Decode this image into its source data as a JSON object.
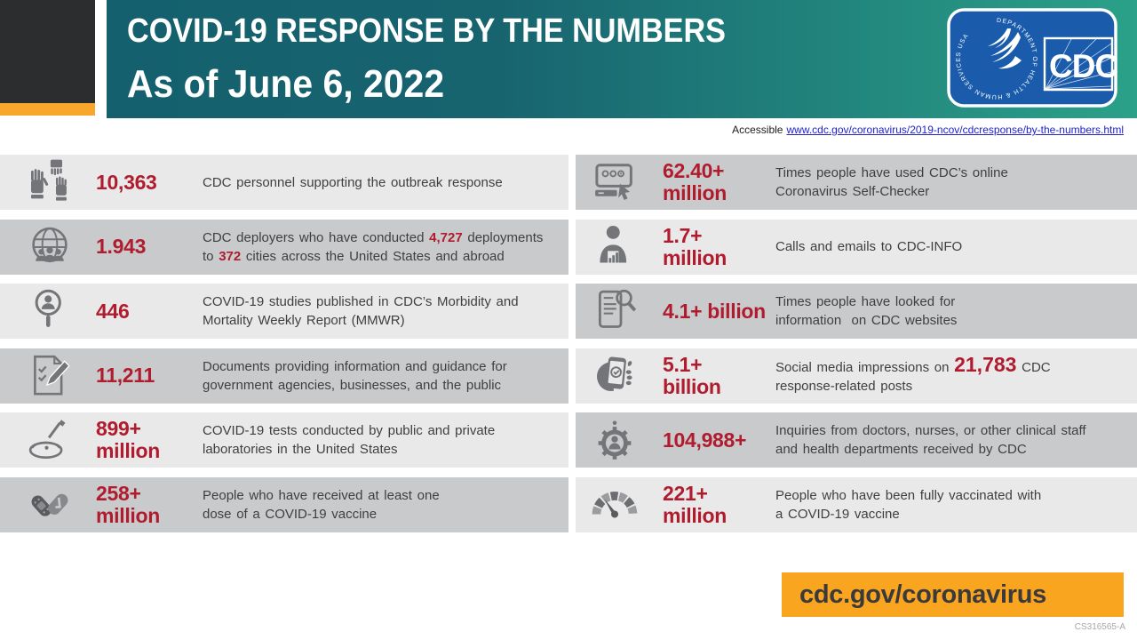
{
  "header": {
    "title": "COVID-19 RESPONSE BY THE NUMBERS",
    "subtitle": "As of June 6, 2022",
    "logo": {
      "ring_text": "DEPARTMENT OF HEALTH & HUMAN SERVICES USA",
      "cdc_text": "CDC"
    }
  },
  "accessible": {
    "label": "Accessible",
    "url_text": "www.cdc.gov/coronavirus/2019-ncov/cdcresponse/by-the-numbers.html"
  },
  "stats": {
    "left": [
      {
        "icon": "raised-hands-icon",
        "value_lines": [
          "10,363"
        ],
        "desc": [
          {
            "text": "CDC personnel supporting the outbreak response"
          }
        ]
      },
      {
        "icon": "globe-people-icon",
        "value_lines": [
          "1.943"
        ],
        "desc": [
          {
            "text": "CDC deployers who have conducted "
          },
          {
            "text": "4,727",
            "red": true
          },
          {
            "text": " deployments\nto "
          },
          {
            "text": "372",
            "red": true
          },
          {
            "text": " cities across the United States and abroad"
          }
        ]
      },
      {
        "icon": "magnifier-person-icon",
        "value_lines": [
          "446"
        ],
        "desc": [
          {
            "text": "COVID-19 studies published in CDC’s Morbidity and\nMortality Weekly Report (MMWR)"
          }
        ]
      },
      {
        "icon": "document-pen-icon",
        "value_lines": [
          "11,211"
        ],
        "desc": [
          {
            "text": "Documents providing information and guidance for\ngovernment agencies, businesses, and the public"
          }
        ]
      },
      {
        "icon": "petri-dish-icon",
        "value_lines": [
          "899+",
          "million"
        ],
        "desc": [
          {
            "text": "COVID-19 tests conducted by public and private\nlaboratories in the United States"
          }
        ]
      },
      {
        "icon": "vaccine-bandage-icon",
        "value_lines": [
          "258+",
          "million"
        ],
        "desc": [
          {
            "text": "People who have received at least one\ndose of a COVID-19 vaccine"
          }
        ]
      }
    ],
    "right": [
      {
        "icon": "self-checker-icon",
        "value_lines": [
          "62.40+",
          "million"
        ],
        "desc": [
          {
            "text": "Times people have used CDC’s online\nCoronavirus Self-Checker"
          }
        ]
      },
      {
        "icon": "person-chart-icon",
        "value_lines": [
          "1.7+",
          "million"
        ],
        "desc": [
          {
            "text": "Calls and emails to CDC-INFO"
          }
        ]
      },
      {
        "icon": "webpage-search-icon",
        "value_lines": [
          "4.1+ billion"
        ],
        "desc": [
          {
            "text": "Times people have looked for\ninformation  on CDC websites"
          }
        ]
      },
      {
        "icon": "phone-check-icon",
        "value_lines": [
          "5.1+",
          "billion"
        ],
        "desc": [
          {
            "text": "Social media impressions on "
          },
          {
            "text": "21,783",
            "red": true,
            "big": true
          },
          {
            "text": " CDC\nresponse-related posts"
          }
        ]
      },
      {
        "icon": "person-gear-icon",
        "value_lines": [
          "104,988+"
        ],
        "desc": [
          {
            "text": "Inquiries from doctors, nurses, or other clinical staff\nand health departments received by CDC"
          }
        ]
      },
      {
        "icon": "gauge-icon",
        "value_lines": [
          "221+",
          "million"
        ],
        "desc": [
          {
            "text": "People who have been fully vaccinated with\na COVID-19 vaccine"
          }
        ]
      }
    ]
  },
  "footer": {
    "url": "cdc.gov/coronavirus",
    "code": "CS316565-A"
  },
  "colors": {
    "teal": "#14606e",
    "green": "#2ba189",
    "orange_strip": "#f9a72c",
    "orange_footer": "#f9a51f",
    "stat_red": "#b01c2e",
    "row_light": "#e9e9e9",
    "row_dark": "#c9cacb",
    "icon_gray": "#747578",
    "logo_blue": "#1a5cab",
    "link_blue": "#2121cd"
  }
}
